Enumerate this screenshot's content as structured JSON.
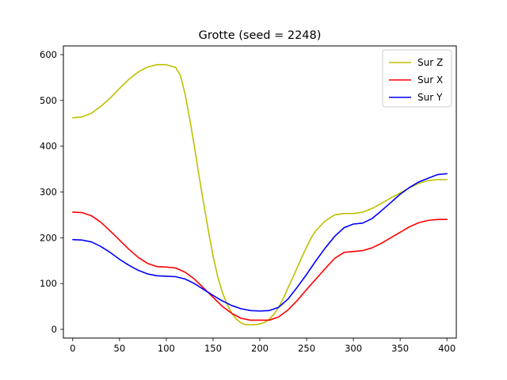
{
  "chart_data": {
    "type": "line",
    "title": "Grotte (seed = 2248)",
    "xlabel": "",
    "ylabel": "",
    "xlim": [
      -10,
      410
    ],
    "ylim": [
      -19,
      619
    ],
    "x_ticks": [
      0,
      50,
      100,
      150,
      200,
      250,
      300,
      350,
      400
    ],
    "y_ticks": [
      0,
      100,
      200,
      300,
      400,
      500,
      600
    ],
    "grid": false,
    "legend_position": "top-right",
    "series": [
      {
        "name": "Sur Z",
        "color": "#bfbf00",
        "points": [
          [
            0,
            462
          ],
          [
            10,
            464
          ],
          [
            20,
            472
          ],
          [
            30,
            487
          ],
          [
            40,
            505
          ],
          [
            50,
            526
          ],
          [
            60,
            546
          ],
          [
            70,
            562
          ],
          [
            80,
            573
          ],
          [
            90,
            578
          ],
          [
            100,
            578
          ],
          [
            110,
            572
          ],
          [
            115,
            555
          ],
          [
            120,
            515
          ],
          [
            125,
            460
          ],
          [
            130,
            400
          ],
          [
            135,
            335
          ],
          [
            140,
            275
          ],
          [
            145,
            215
          ],
          [
            150,
            160
          ],
          [
            155,
            115
          ],
          [
            160,
            80
          ],
          [
            165,
            55
          ],
          [
            170,
            35
          ],
          [
            175,
            22
          ],
          [
            180,
            14
          ],
          [
            185,
            10
          ],
          [
            190,
            10
          ],
          [
            195,
            10
          ],
          [
            200,
            12
          ],
          [
            205,
            15
          ],
          [
            210,
            22
          ],
          [
            215,
            33
          ],
          [
            220,
            48
          ],
          [
            225,
            67
          ],
          [
            230,
            90
          ],
          [
            235,
            112
          ],
          [
            240,
            135
          ],
          [
            245,
            158
          ],
          [
            250,
            180
          ],
          [
            255,
            200
          ],
          [
            260,
            216
          ],
          [
            270,
            237
          ],
          [
            280,
            250
          ],
          [
            290,
            253
          ],
          [
            300,
            253
          ],
          [
            310,
            256
          ],
          [
            320,
            264
          ],
          [
            330,
            275
          ],
          [
            340,
            287
          ],
          [
            350,
            298
          ],
          [
            360,
            309
          ],
          [
            370,
            319
          ],
          [
            380,
            325
          ],
          [
            390,
            327
          ],
          [
            400,
            327
          ]
        ]
      },
      {
        "name": "Sur X",
        "color": "#ff0000",
        "points": [
          [
            0,
            256
          ],
          [
            10,
            255
          ],
          [
            20,
            248
          ],
          [
            30,
            234
          ],
          [
            40,
            215
          ],
          [
            50,
            195
          ],
          [
            60,
            175
          ],
          [
            70,
            157
          ],
          [
            80,
            144
          ],
          [
            90,
            137
          ],
          [
            100,
            136
          ],
          [
            110,
            134
          ],
          [
            120,
            125
          ],
          [
            130,
            110
          ],
          [
            140,
            90
          ],
          [
            150,
            70
          ],
          [
            160,
            50
          ],
          [
            170,
            35
          ],
          [
            180,
            24
          ],
          [
            190,
            20
          ],
          [
            200,
            20
          ],
          [
            210,
            20
          ],
          [
            220,
            27
          ],
          [
            230,
            42
          ],
          [
            240,
            63
          ],
          [
            250,
            87
          ],
          [
            260,
            110
          ],
          [
            270,
            133
          ],
          [
            280,
            155
          ],
          [
            290,
            168
          ],
          [
            300,
            170
          ],
          [
            310,
            172
          ],
          [
            320,
            178
          ],
          [
            330,
            188
          ],
          [
            340,
            200
          ],
          [
            350,
            212
          ],
          [
            360,
            224
          ],
          [
            370,
            233
          ],
          [
            380,
            238
          ],
          [
            390,
            240
          ],
          [
            400,
            240
          ]
        ]
      },
      {
        "name": "Sur Y",
        "color": "#0000ff",
        "points": [
          [
            0,
            196
          ],
          [
            10,
            195
          ],
          [
            20,
            191
          ],
          [
            30,
            181
          ],
          [
            40,
            168
          ],
          [
            50,
            153
          ],
          [
            60,
            140
          ],
          [
            70,
            129
          ],
          [
            80,
            121
          ],
          [
            90,
            117
          ],
          [
            100,
            116
          ],
          [
            110,
            115
          ],
          [
            120,
            110
          ],
          [
            130,
            100
          ],
          [
            140,
            87
          ],
          [
            150,
            74
          ],
          [
            160,
            62
          ],
          [
            170,
            52
          ],
          [
            180,
            45
          ],
          [
            190,
            41
          ],
          [
            200,
            40
          ],
          [
            210,
            41
          ],
          [
            220,
            48
          ],
          [
            230,
            66
          ],
          [
            240,
            92
          ],
          [
            250,
            120
          ],
          [
            260,
            150
          ],
          [
            270,
            178
          ],
          [
            280,
            203
          ],
          [
            290,
            222
          ],
          [
            300,
            230
          ],
          [
            310,
            232
          ],
          [
            320,
            242
          ],
          [
            330,
            259
          ],
          [
            340,
            277
          ],
          [
            350,
            295
          ],
          [
            360,
            310
          ],
          [
            370,
            322
          ],
          [
            380,
            330
          ],
          [
            390,
            338
          ],
          [
            400,
            340
          ]
        ]
      }
    ]
  }
}
